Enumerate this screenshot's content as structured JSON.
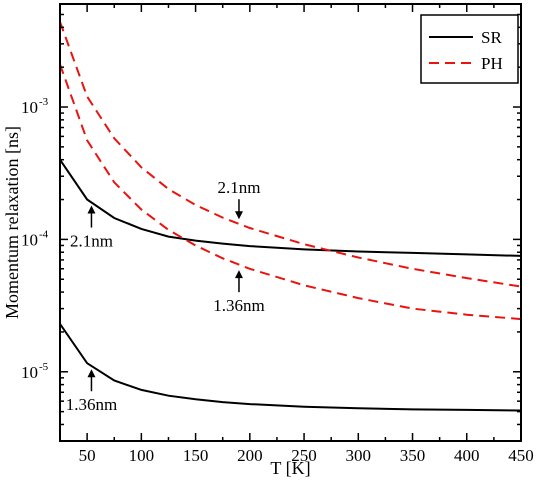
{
  "chart_data": {
    "type": "line",
    "xlabel": "T [K]",
    "ylabel": "Momentum relaxation [ns]",
    "xlim": [
      25,
      450
    ],
    "ylim": [
      3e-06,
      0.006
    ],
    "yscale": "log",
    "x_ticks": [
      50,
      100,
      150,
      200,
      250,
      300,
      350,
      400,
      450
    ],
    "x_tick_labels": [
      "50",
      "100",
      "150",
      "200",
      "250",
      "300",
      "350",
      "400",
      "450"
    ],
    "y_ticks": [
      1e-05,
      0.0001,
      0.001
    ],
    "y_tick_labels": [
      {
        "base": "10",
        "exp": "-5"
      },
      {
        "base": "10",
        "exp": "-4"
      },
      {
        "base": "10",
        "exp": "-3"
      }
    ],
    "grid": false,
    "legend_position": "top-right",
    "legend": [
      {
        "label": "SR",
        "color": "#000000",
        "dash": "solid"
      },
      {
        "label": "PH",
        "color": "#e8140f",
        "dash": "dashed"
      }
    ],
    "series": [
      {
        "legend_ref": "SR",
        "color": "#000000",
        "dash": "solid",
        "x": [
          25,
          50,
          75,
          100,
          125,
          150,
          175,
          200,
          250,
          300,
          350,
          400,
          450
        ],
        "y": [
          0.0004,
          0.0002,
          0.000145,
          0.00012,
          0.000105,
          9.8e-05,
          9.3e-05,
          8.9e-05,
          8.4e-05,
          8.1e-05,
          7.9e-05,
          7.7e-05,
          7.5e-05
        ]
      },
      {
        "legend_ref": "SR",
        "color": "#000000",
        "dash": "solid",
        "x": [
          25,
          50,
          75,
          100,
          125,
          150,
          175,
          200,
          250,
          300,
          350,
          400,
          450
        ],
        "y": [
          2.3e-05,
          1.16e-05,
          8.6e-06,
          7.3e-06,
          6.6e-06,
          6.2e-06,
          5.9e-06,
          5.7e-06,
          5.45e-06,
          5.3e-06,
          5.2e-06,
          5.15e-06,
          5.1e-06
        ]
      },
      {
        "legend_ref": "PH",
        "color": "#e8140f",
        "dash": "dashed",
        "x": [
          25,
          50,
          75,
          100,
          125,
          150,
          175,
          200,
          250,
          300,
          350,
          400,
          450
        ],
        "y": [
          0.0044,
          0.0012,
          0.00058,
          0.00035,
          0.00024,
          0.000182,
          0.000146,
          0.000122,
          9.2e-05,
          7.3e-05,
          6e-05,
          5.1e-05,
          4.4e-05
        ]
      },
      {
        "legend_ref": "PH",
        "color": "#e8140f",
        "dash": "dashed",
        "x": [
          25,
          50,
          75,
          100,
          125,
          150,
          175,
          200,
          250,
          300,
          350,
          400,
          450
        ],
        "y": [
          0.0021,
          0.00056,
          0.00027,
          0.000168,
          0.000118,
          9e-05,
          7.2e-05,
          6e-05,
          4.5e-05,
          3.6e-05,
          3e-05,
          2.7e-05,
          2.5e-05
        ]
      }
    ],
    "annotations": [
      {
        "text": "2.1nm",
        "x": 54,
        "y": 0.0002,
        "arrow": "up",
        "label_side": "below"
      },
      {
        "text": "1.36nm",
        "x": 54,
        "y": 1.16e-05,
        "arrow": "up",
        "label_side": "below"
      },
      {
        "text": "2.1nm",
        "x": 190,
        "y": 0.000128,
        "arrow": "down",
        "label_side": "above"
      },
      {
        "text": "1.36nm",
        "x": 190,
        "y": 6.5e-05,
        "arrow": "up",
        "label_side": "below"
      }
    ]
  }
}
